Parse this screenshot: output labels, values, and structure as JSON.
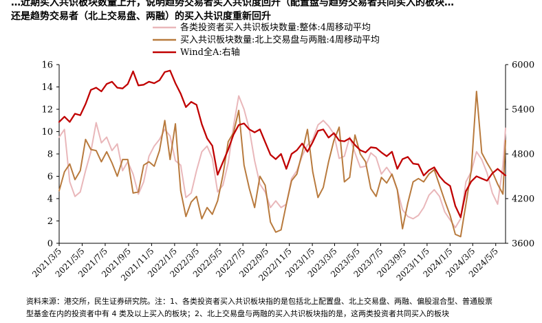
{
  "header": {
    "title_line1": "…近期买入共识板块数量上升，说明趋势交易者买入共识度回升（配置盘与趋势交易者共同买入的板块…",
    "title_line2": "还是趋势交易者（北上交易盘、两融）的买入共识度重新回升"
  },
  "footnote": {
    "line1": "资料来源：港交所，民生证券研究院。注：1、各类投资者买入共识板块指的是包括北上配置盘、北上交易盘、两融、偏股混合型、普通股票",
    "line2": "型基金在内的投资者中有 4 类及以上买入的板块；2、北上交易盘与两融的买入共识板块指的是，这两类投资者共同买入的板块"
  },
  "chart_data": {
    "type": "line",
    "title": "",
    "xlabel": "",
    "ylabel": "",
    "ylim_left": [
      0,
      16
    ],
    "yticks_left": [
      "0",
      "2",
      "4",
      "6",
      "8",
      "10",
      "12",
      "14",
      "16"
    ],
    "ylim_right": [
      3600,
      6000
    ],
    "yticks_right": [
      "3600",
      "4200",
      "4800",
      "5400",
      "6000"
    ],
    "x_start": "2021-03-05",
    "x_end": "2024-05-31",
    "xtick_labels": [
      "2021/3/5",
      "2021/5/5",
      "2021/7/5",
      "2021/9/5",
      "2021/11/5",
      "2022/1/5",
      "2022/3/5",
      "2022/5/5",
      "2022/7/5",
      "2022/9/5",
      "2022/11/5",
      "2023/1/5",
      "2023/3/5",
      "2023/5/5",
      "2023/7/5",
      "2023/9/5",
      "2023/11/5",
      "2024/1/5",
      "2024/3/5",
      "2024/5/5"
    ],
    "xtick_dates": [
      "2021-03-05",
      "2021-05-05",
      "2021-07-05",
      "2021-09-05",
      "2021-11-05",
      "2022-01-05",
      "2022-03-05",
      "2022-05-05",
      "2022-07-05",
      "2022-09-05",
      "2022-11-05",
      "2023-01-05",
      "2023-03-05",
      "2023-05-05",
      "2023-07-05",
      "2023-09-05",
      "2023-11-05",
      "2024-01-05",
      "2024-03-05",
      "2024-05-05"
    ],
    "legend_position": "top-center",
    "grid": false,
    "series": [
      {
        "name": "各类投资者买入共识板块数量:整体:4周移动平均",
        "axis": "left",
        "color": "#e9b7ba",
        "points": [
          [
            "2021-03-05",
            9.5
          ],
          [
            "2021-03-19",
            10.2
          ],
          [
            "2021-04-02",
            5.5
          ],
          [
            "2021-04-16",
            4.2
          ],
          [
            "2021-04-30",
            4.6
          ],
          [
            "2021-05-14",
            6.5
          ],
          [
            "2021-05-28",
            8.2
          ],
          [
            "2021-06-11",
            10.8
          ],
          [
            "2021-06-25",
            9.0
          ],
          [
            "2021-07-09",
            9.5
          ],
          [
            "2021-07-23",
            8.3
          ],
          [
            "2021-08-06",
            8.9
          ],
          [
            "2021-08-20",
            6.5
          ],
          [
            "2021-09-03",
            7.3
          ],
          [
            "2021-09-17",
            6.2
          ],
          [
            "2021-10-01",
            4.4
          ],
          [
            "2021-10-15",
            5.5
          ],
          [
            "2021-10-29",
            7.8
          ],
          [
            "2021-11-12",
            8.7
          ],
          [
            "2021-11-26",
            9.3
          ],
          [
            "2021-12-10",
            10.2
          ],
          [
            "2021-12-24",
            9.6
          ],
          [
            "2022-01-07",
            7.4
          ],
          [
            "2022-01-21",
            7.0
          ],
          [
            "2022-02-04",
            4.1
          ],
          [
            "2022-02-18",
            4.5
          ],
          [
            "2022-03-04",
            6.5
          ],
          [
            "2022-03-18",
            8.2
          ],
          [
            "2022-04-01",
            8.7
          ],
          [
            "2022-04-15",
            7.6
          ],
          [
            "2022-04-29",
            4.6
          ],
          [
            "2022-05-13",
            5.2
          ],
          [
            "2022-05-27",
            7.2
          ],
          [
            "2022-06-10",
            10.5
          ],
          [
            "2022-06-24",
            13.2
          ],
          [
            "2022-07-08",
            12.0
          ],
          [
            "2022-07-22",
            10.2
          ],
          [
            "2022-08-05",
            7.4
          ],
          [
            "2022-08-19",
            5.3
          ],
          [
            "2022-09-02",
            4.6
          ],
          [
            "2022-09-16",
            3.2
          ],
          [
            "2022-09-30",
            3.8
          ],
          [
            "2022-10-14",
            3.2
          ],
          [
            "2022-10-28",
            3.5
          ],
          [
            "2022-11-11",
            5.8
          ],
          [
            "2022-11-25",
            6.5
          ],
          [
            "2022-12-09",
            7.8
          ],
          [
            "2022-12-23",
            8.8
          ],
          [
            "2023-01-06",
            9.3
          ],
          [
            "2023-01-20",
            10.6
          ],
          [
            "2023-02-03",
            11.0
          ],
          [
            "2023-02-17",
            10.5
          ],
          [
            "2023-03-03",
            9.8
          ],
          [
            "2023-03-17",
            7.6
          ],
          [
            "2023-03-31",
            7.8
          ],
          [
            "2023-04-14",
            9.5
          ],
          [
            "2023-04-28",
            8.1
          ],
          [
            "2023-05-12",
            6.8
          ],
          [
            "2023-05-26",
            6.9
          ],
          [
            "2023-06-09",
            8.1
          ],
          [
            "2023-06-23",
            7.7
          ],
          [
            "2023-07-07",
            6.2
          ],
          [
            "2023-07-21",
            6.8
          ],
          [
            "2023-08-04",
            6.1
          ],
          [
            "2023-08-18",
            4.8
          ],
          [
            "2023-09-01",
            3.0
          ],
          [
            "2023-09-15",
            2.4
          ],
          [
            "2023-09-29",
            2.2
          ],
          [
            "2023-10-13",
            2.5
          ],
          [
            "2023-10-27",
            3.2
          ],
          [
            "2023-11-10",
            4.3
          ],
          [
            "2023-11-24",
            4.8
          ],
          [
            "2023-12-08",
            4.2
          ],
          [
            "2023-12-22",
            2.8
          ],
          [
            "2024-01-05",
            2.1
          ],
          [
            "2024-01-19",
            1.4
          ],
          [
            "2024-02-02",
            2.2
          ],
          [
            "2024-02-16",
            5.5
          ],
          [
            "2024-03-01",
            6.4
          ],
          [
            "2024-03-15",
            8.2
          ],
          [
            "2024-03-29",
            7.5
          ],
          [
            "2024-04-12",
            6.3
          ],
          [
            "2024-04-26",
            4.5
          ],
          [
            "2024-05-10",
            3.5
          ],
          [
            "2024-05-24",
            7.0
          ],
          [
            "2024-05-31",
            10.3
          ]
        ]
      },
      {
        "name": "买入共识板块数量:北上交易盘与两融:4周移动平均",
        "axis": "left",
        "color": "#b87a3d",
        "points": [
          [
            "2021-03-05",
            4.7
          ],
          [
            "2021-03-19",
            6.4
          ],
          [
            "2021-04-02",
            7.1
          ],
          [
            "2021-04-16",
            5.7
          ],
          [
            "2021-04-30",
            6.5
          ],
          [
            "2021-05-14",
            9.3
          ],
          [
            "2021-05-28",
            8.4
          ],
          [
            "2021-06-11",
            8.3
          ],
          [
            "2021-06-25",
            7.3
          ],
          [
            "2021-07-09",
            8.2
          ],
          [
            "2021-07-23",
            7.2
          ],
          [
            "2021-08-06",
            6.0
          ],
          [
            "2021-08-20",
            7.5
          ],
          [
            "2021-09-03",
            7.5
          ],
          [
            "2021-09-17",
            4.5
          ],
          [
            "2021-10-01",
            4.6
          ],
          [
            "2021-10-15",
            7.0
          ],
          [
            "2021-10-29",
            7.3
          ],
          [
            "2021-11-12",
            6.9
          ],
          [
            "2021-11-26",
            8.3
          ],
          [
            "2021-12-10",
            11.0
          ],
          [
            "2021-12-24",
            7.5
          ],
          [
            "2022-01-07",
            10.7
          ],
          [
            "2022-01-21",
            4.7
          ],
          [
            "2022-02-04",
            2.4
          ],
          [
            "2022-02-18",
            3.7
          ],
          [
            "2022-03-04",
            4.2
          ],
          [
            "2022-03-18",
            2.2
          ],
          [
            "2022-04-01",
            3.2
          ],
          [
            "2022-04-15",
            2.6
          ],
          [
            "2022-04-29",
            3.8
          ],
          [
            "2022-05-13",
            6.1
          ],
          [
            "2022-05-27",
            9.1
          ],
          [
            "2022-06-10",
            9.9
          ],
          [
            "2022-06-24",
            11.9
          ],
          [
            "2022-07-08",
            7.0
          ],
          [
            "2022-07-22",
            4.9
          ],
          [
            "2022-08-05",
            3.2
          ],
          [
            "2022-08-19",
            6.0
          ],
          [
            "2022-09-02",
            5.2
          ],
          [
            "2022-09-16",
            1.9
          ],
          [
            "2022-09-30",
            1.0
          ],
          [
            "2022-10-14",
            1.2
          ],
          [
            "2022-10-28",
            3.5
          ],
          [
            "2022-11-11",
            5.6
          ],
          [
            "2022-11-25",
            6.2
          ],
          [
            "2022-12-09",
            8.1
          ],
          [
            "2022-12-23",
            10.2
          ],
          [
            "2023-01-06",
            6.4
          ],
          [
            "2023-01-20",
            4.1
          ],
          [
            "2023-02-03",
            5.0
          ],
          [
            "2023-02-17",
            7.3
          ],
          [
            "2023-03-03",
            9.2
          ],
          [
            "2023-03-17",
            10.4
          ],
          [
            "2023-03-31",
            5.5
          ],
          [
            "2023-04-14",
            5.9
          ],
          [
            "2023-04-28",
            9.7
          ],
          [
            "2023-05-12",
            8.0
          ],
          [
            "2023-05-26",
            7.3
          ],
          [
            "2023-06-09",
            4.9
          ],
          [
            "2023-06-23",
            4.2
          ],
          [
            "2023-07-07",
            5.9
          ],
          [
            "2023-07-21",
            5.4
          ],
          [
            "2023-08-04",
            6.2
          ],
          [
            "2023-08-18",
            4.8
          ],
          [
            "2023-09-01",
            1.3
          ],
          [
            "2023-09-15",
            3.6
          ],
          [
            "2023-09-29",
            5.5
          ],
          [
            "2023-10-13",
            5.8
          ],
          [
            "2023-10-27",
            5.5
          ],
          [
            "2023-11-10",
            6.2
          ],
          [
            "2023-11-24",
            6.6
          ],
          [
            "2023-12-08",
            5.2
          ],
          [
            "2023-12-22",
            3.8
          ],
          [
            "2024-01-05",
            2.5
          ],
          [
            "2024-01-19",
            0.8
          ],
          [
            "2024-02-02",
            0.6
          ],
          [
            "2024-02-16",
            3.5
          ],
          [
            "2024-03-01",
            6.5
          ],
          [
            "2024-03-15",
            13.6
          ],
          [
            "2024-03-29",
            8.1
          ],
          [
            "2024-04-12",
            7.2
          ],
          [
            "2024-04-26",
            6.4
          ],
          [
            "2024-05-10",
            5.3
          ],
          [
            "2024-05-24",
            4.4
          ],
          [
            "2024-05-31",
            9.2
          ]
        ]
      },
      {
        "name": "Wind全A:右轴",
        "axis": "right",
        "color": "#c00000",
        "points": [
          [
            "2021-03-05",
            5230
          ],
          [
            "2021-03-19",
            5300
          ],
          [
            "2021-04-02",
            5230
          ],
          [
            "2021-04-16",
            5340
          ],
          [
            "2021-04-30",
            5320
          ],
          [
            "2021-05-14",
            5470
          ],
          [
            "2021-05-28",
            5660
          ],
          [
            "2021-06-11",
            5690
          ],
          [
            "2021-06-25",
            5640
          ],
          [
            "2021-07-09",
            5740
          ],
          [
            "2021-07-23",
            5770
          ],
          [
            "2021-08-06",
            5690
          ],
          [
            "2021-08-20",
            5680
          ],
          [
            "2021-09-03",
            5740
          ],
          [
            "2021-09-17",
            5910
          ],
          [
            "2021-10-01",
            5720
          ],
          [
            "2021-10-15",
            5730
          ],
          [
            "2021-10-29",
            5770
          ],
          [
            "2021-11-12",
            5750
          ],
          [
            "2021-11-26",
            5790
          ],
          [
            "2021-12-10",
            5900
          ],
          [
            "2021-12-24",
            5920
          ],
          [
            "2022-01-07",
            5750
          ],
          [
            "2022-01-21",
            5610
          ],
          [
            "2022-02-04",
            5430
          ],
          [
            "2022-02-18",
            5500
          ],
          [
            "2022-03-04",
            5460
          ],
          [
            "2022-03-18",
            5200
          ],
          [
            "2022-04-01",
            5010
          ],
          [
            "2022-04-15",
            4910
          ],
          [
            "2022-04-29",
            4520
          ],
          [
            "2022-05-13",
            4690
          ],
          [
            "2022-05-27",
            4860
          ],
          [
            "2022-06-10",
            5060
          ],
          [
            "2022-06-24",
            5190
          ],
          [
            "2022-07-08",
            5210
          ],
          [
            "2022-07-22",
            5130
          ],
          [
            "2022-08-05",
            5090
          ],
          [
            "2022-08-19",
            5130
          ],
          [
            "2022-09-02",
            4960
          ],
          [
            "2022-09-16",
            4790
          ],
          [
            "2022-09-30",
            4730
          ],
          [
            "2022-10-14",
            4800
          ],
          [
            "2022-10-28",
            4600
          ],
          [
            "2022-11-11",
            4800
          ],
          [
            "2022-11-25",
            4850
          ],
          [
            "2022-12-09",
            4940
          ],
          [
            "2022-12-23",
            4830
          ],
          [
            "2023-01-06",
            4960
          ],
          [
            "2023-01-20",
            5110
          ],
          [
            "2023-02-03",
            5130
          ],
          [
            "2023-02-17",
            5020
          ],
          [
            "2023-03-03",
            5080
          ],
          [
            "2023-03-17",
            4980
          ],
          [
            "2023-03-31",
            4970
          ],
          [
            "2023-04-14",
            5010
          ],
          [
            "2023-04-28",
            4920
          ],
          [
            "2023-05-12",
            4850
          ],
          [
            "2023-05-26",
            4820
          ],
          [
            "2023-06-09",
            4890
          ],
          [
            "2023-06-23",
            4880
          ],
          [
            "2023-07-07",
            4820
          ],
          [
            "2023-07-21",
            4770
          ],
          [
            "2023-08-04",
            4830
          ],
          [
            "2023-08-18",
            4600
          ],
          [
            "2023-09-01",
            4730
          ],
          [
            "2023-09-15",
            4760
          ],
          [
            "2023-09-29",
            4670
          ],
          [
            "2023-10-13",
            4660
          ],
          [
            "2023-10-27",
            4510
          ],
          [
            "2023-11-10",
            4580
          ],
          [
            "2023-11-24",
            4620
          ],
          [
            "2023-12-08",
            4500
          ],
          [
            "2023-12-22",
            4420
          ],
          [
            "2024-01-05",
            4370
          ],
          [
            "2024-01-19",
            4100
          ],
          [
            "2024-02-02",
            3950
          ],
          [
            "2024-02-16",
            4300
          ],
          [
            "2024-03-01",
            4430
          ],
          [
            "2024-03-15",
            4500
          ],
          [
            "2024-03-29",
            4470
          ],
          [
            "2024-04-12",
            4440
          ],
          [
            "2024-04-26",
            4540
          ],
          [
            "2024-05-10",
            4600
          ],
          [
            "2024-05-24",
            4540
          ],
          [
            "2024-05-31",
            4510
          ]
        ]
      }
    ]
  }
}
